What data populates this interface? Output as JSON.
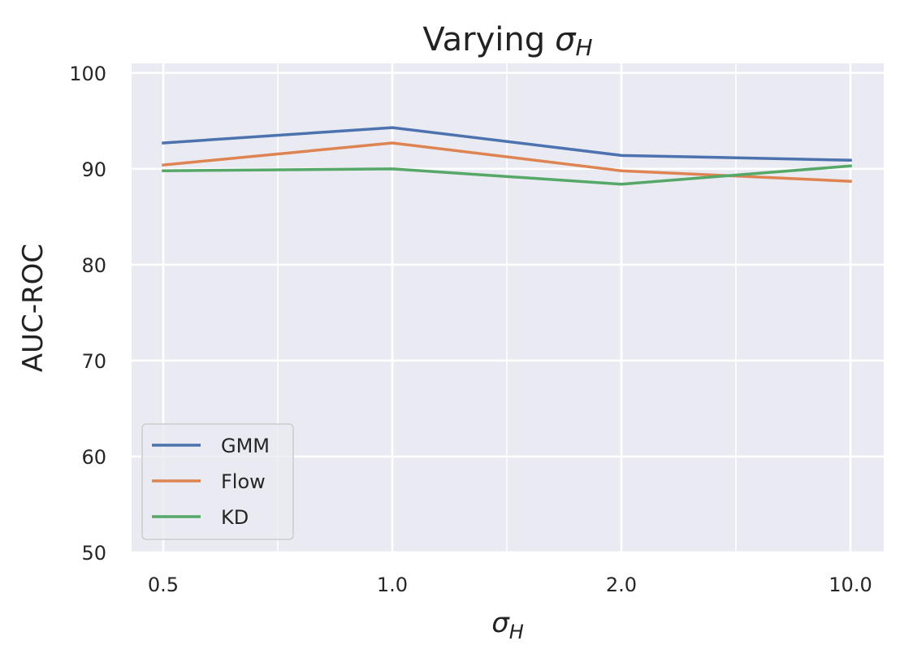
{
  "chart_data": {
    "type": "line",
    "title": "Varying",
    "title_symbol": "σ",
    "title_subscript": "H",
    "xlabel": "",
    "xlabel_symbol": "σ",
    "xlabel_subscript": "H",
    "ylabel": "AUC-ROC",
    "categories": [
      "0.5",
      "1.0",
      "2.0",
      "10.0"
    ],
    "ylim": [
      50,
      101
    ],
    "yticks": [
      50,
      60,
      70,
      80,
      90,
      100
    ],
    "grid": true,
    "legend_position": "lower-left",
    "series": [
      {
        "name": "GMM",
        "color": "#4c72b0",
        "values": [
          92.7,
          94.3,
          91.4,
          90.9
        ]
      },
      {
        "name": "Flow",
        "color": "#dd8452",
        "values": [
          90.4,
          92.7,
          89.8,
          88.7
        ]
      },
      {
        "name": "KD",
        "color": "#55a868",
        "values": [
          89.8,
          90.0,
          88.4,
          90.3
        ]
      }
    ]
  }
}
